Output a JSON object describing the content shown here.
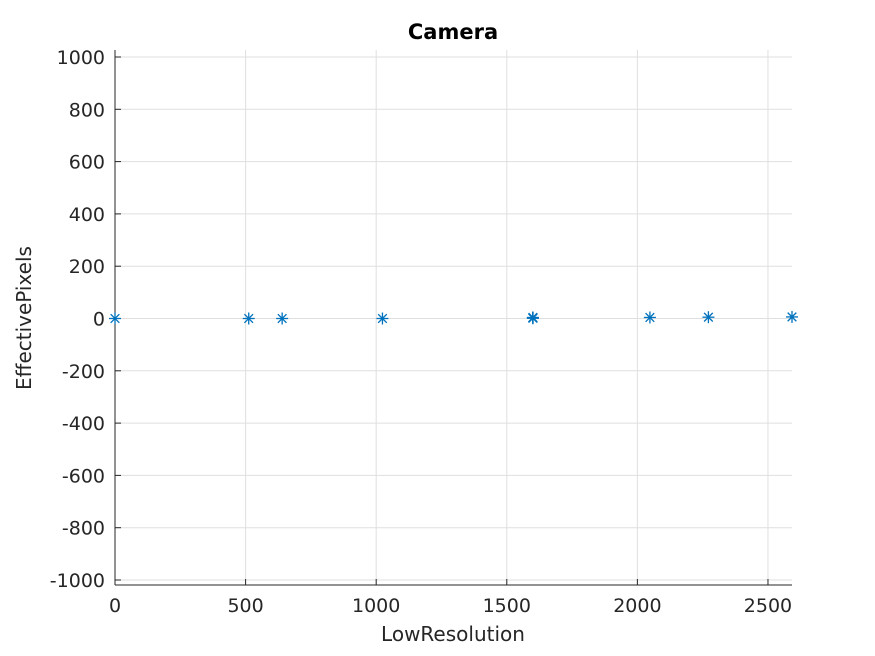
{
  "chart_data": {
    "type": "scatter",
    "title": "Camera",
    "xlabel": "LowResolution",
    "ylabel": "EffectivePixels",
    "xlim": [
      0,
      2592
    ],
    "ylim": [
      -1000,
      1000
    ],
    "xticks": [
      0,
      500,
      1000,
      1500,
      2000,
      2500
    ],
    "yticks": [
      -1000,
      -800,
      -600,
      -400,
      -200,
      0,
      200,
      400,
      600,
      800,
      1000
    ],
    "grid": true,
    "marker": "asterisk",
    "color": "#0072BD",
    "series": [
      {
        "x": [
          0,
          512,
          640,
          1024,
          1600,
          1600,
          1600,
          1600,
          2048,
          2272,
          2592
        ],
        "y": [
          0,
          0,
          0,
          0,
          1,
          2,
          3,
          4,
          4,
          5,
          6
        ]
      }
    ]
  }
}
